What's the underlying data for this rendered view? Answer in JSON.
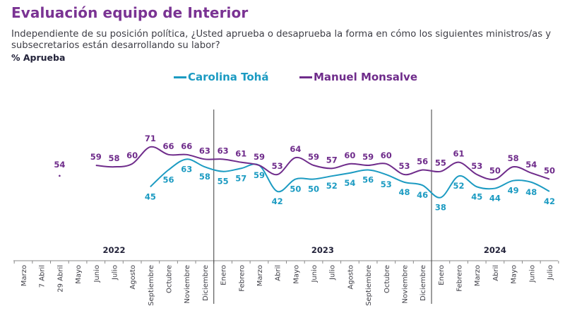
{
  "header": {
    "title": "Evaluación equipo de Interior",
    "subtitle": "Independiente de su posición política, ¿Usted aprueba o desaprueba la forma en cómo los siguientes ministros/as y subsecretarios están desarrollando su labor?",
    "metric": "% Aprueba"
  },
  "legend": [
    {
      "name": "Carolina Tohá",
      "color": "#1c9bc2"
    },
    {
      "name": "Manuel Monsalve",
      "color": "#6f2c8b"
    }
  ],
  "chart_data": {
    "type": "line",
    "title": "Evaluación equipo de Interior",
    "xlabel": "",
    "ylabel": "% Aprueba",
    "grid": false,
    "legend_position": "top-center",
    "years": [
      {
        "label": "2022",
        "from": 0,
        "to": 10
      },
      {
        "label": "2023",
        "from": 11,
        "to": 22
      },
      {
        "label": "2024",
        "from": 23,
        "to": 29
      }
    ],
    "categories": [
      "Marzo",
      "7 Abril",
      "29 Abril",
      "Mayo",
      "Junio",
      "Julio",
      "Agosto",
      "Septiembre",
      "Octubre",
      "Noviembre",
      "Diciembre",
      "Enero",
      "Febrero",
      "Marzo",
      "Abril",
      "Mayo",
      "Junio",
      "Julio",
      "Agosto",
      "Septiembre",
      "Octubre",
      "Noviembre",
      "Diciembre",
      "Enero",
      "Febrero",
      "Marzo",
      "Abril",
      "Mayo",
      "Junio",
      "Julio"
    ],
    "series": [
      {
        "name": "Carolina Tohá",
        "color": "#1c9bc2",
        "values": [
          null,
          null,
          null,
          null,
          null,
          null,
          null,
          45,
          56,
          63,
          58,
          55,
          57,
          59,
          42,
          50,
          50,
          52,
          54,
          56,
          53,
          48,
          46,
          38,
          52,
          45,
          44,
          49,
          48,
          42
        ]
      },
      {
        "name": "Manuel Monsalve",
        "color": "#6f2c8b",
        "values": [
          null,
          null,
          54,
          null,
          59,
          58,
          60,
          71,
          66,
          66,
          63,
          63,
          61,
          59,
          53,
          64,
          59,
          57,
          60,
          59,
          60,
          53,
          56,
          55,
          61,
          53,
          50,
          58,
          54,
          50
        ]
      }
    ]
  }
}
